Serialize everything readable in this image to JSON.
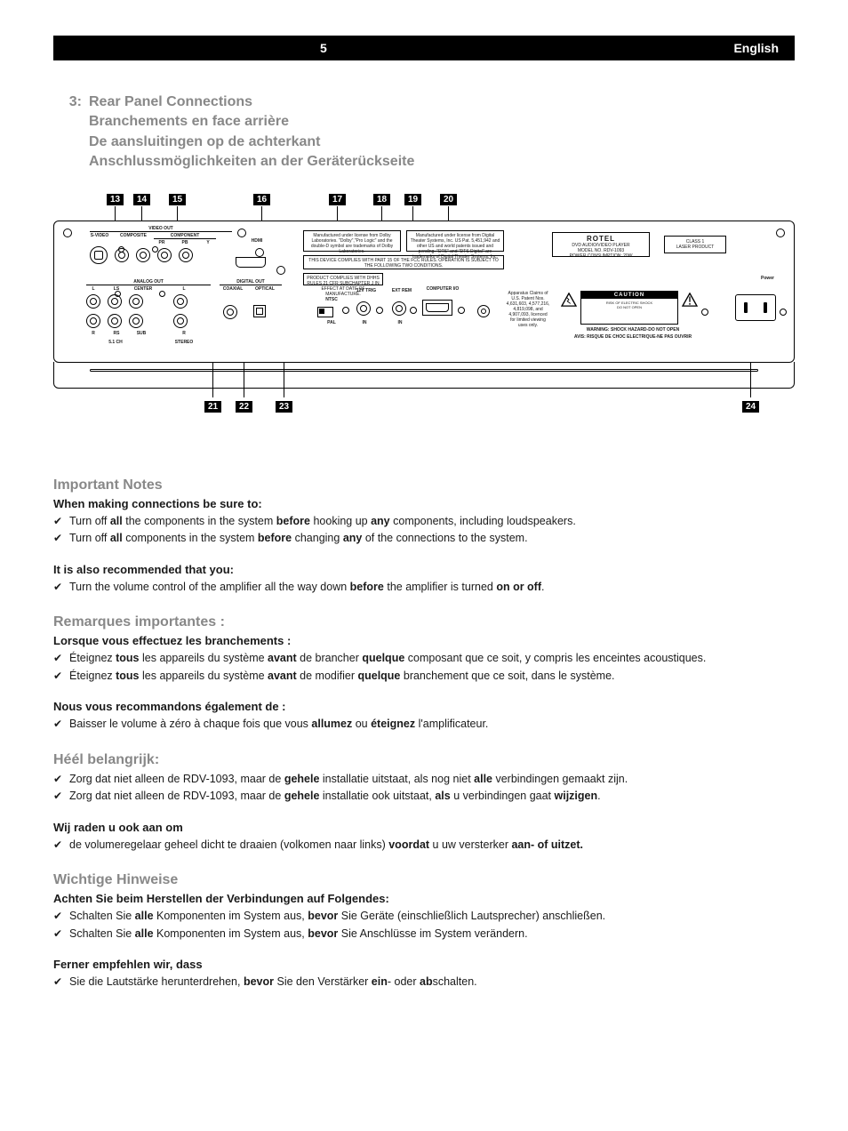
{
  "header": {
    "page_number": "5",
    "language": "English"
  },
  "title": {
    "number": "3:",
    "line1": "Rear Panel Connections",
    "line2": "Branchements en face arrière",
    "line3": "De aansluitingen op de achterkant",
    "line4": "Anschlussmöglichkeiten an der Geräterückseite"
  },
  "diagram": {
    "callouts_top": [
      "13",
      "14",
      "15",
      "16",
      "17",
      "18",
      "19",
      "20"
    ],
    "callouts_top_x": [
      60,
      90,
      130,
      225,
      310,
      360,
      395,
      435
    ],
    "callouts_bottom": [
      "21",
      "22",
      "23",
      "24"
    ],
    "callouts_bottom_x": [
      170,
      205,
      250,
      775
    ],
    "panel_labels": {
      "video_out": "VIDEO OUT",
      "svideo": "S-VIDEO",
      "composite": "COMPOSITE",
      "component": "COMPONENT",
      "pr": "PR",
      "pb": "PB",
      "y": "Y",
      "hdmi": "HDMI",
      "analog_out": "ANALOG OUT",
      "l": "L",
      "ls": "LS",
      "center": "CENTER",
      "r": "R",
      "rs": "RS",
      "sub": "SUB",
      "stereo_l": "L",
      "stereo_r": "R",
      "ch51": "5.1 CH",
      "stereo": "STEREO",
      "digital_out": "DIGITAL OUT",
      "coaxial": "COAXIAL",
      "optical": "OPTICAL",
      "ntsc": "NTSC",
      "pal": "PAL",
      "trig12v": "12V TRIG",
      "ext_rem": "EXT REM",
      "in1": "IN",
      "in2": "IN",
      "computer": "COMPUTER I/O",
      "rotel": "ROTEL",
      "model_line1": "DVD AUDIO/VIDEO PLAYER",
      "model_line2": "MODEL NO. RDV-1093",
      "model_line3": "POWER CONSUMPTION: 20W",
      "class1a": "CLASS 1",
      "class1b": "LASER PRODUCT",
      "caution": "CAUTION",
      "caution_l1": "RISK OF ELECTRIC SHOCK",
      "caution_l2": "DO NOT OPEN",
      "warn_l1": "WARNING: SHOCK HAZARD-DO NOT OPEN",
      "warn_l2": "AVIS: RISQUE DE CHOC ELECTRIQUE-NE PAS OUVRIR"
    }
  },
  "sections": {
    "en": {
      "heading": "Important Notes",
      "sub1": "When making connections be sure to:",
      "items1": [
        {
          "pre": "Turn off ",
          "b1": "all",
          "mid": " the components in the system ",
          "b2": "before",
          "mid2": " hooking up ",
          "b3": "any",
          "post": " components, including loudspeakers."
        },
        {
          "pre": "Turn off ",
          "b1": "all",
          "mid": " components in the system ",
          "b2": "before",
          "mid2": " changing ",
          "b3": "any",
          "post": " of the connections to the system."
        }
      ],
      "sub2": "It is also recommended that you:",
      "items2": [
        {
          "pre": "Turn the volume control of the amplifier all the way down ",
          "b1": "before",
          "mid": " the amplifier is turned ",
          "b2": "on or off",
          "post": "."
        }
      ]
    },
    "fr": {
      "heading": "Remarques importantes :",
      "sub1": "Lorsque vous effectuez les branchements :",
      "items1": [
        {
          "pre": "Éteignez ",
          "b1": "tous",
          "mid": " les appareils du système ",
          "b2": "avant",
          "mid2": " de brancher ",
          "b3": "quelque",
          "post": " composant que ce soit, y compris les enceintes acoustiques."
        },
        {
          "pre": "Éteignez ",
          "b1": "tous",
          "mid": " les appareils du système ",
          "b2": "avant",
          "mid2": " de modifier ",
          "b3": "quelque",
          "post": " branchement que ce soit, dans le système."
        }
      ],
      "sub2": "Nous vous recommandons également de :",
      "items2": [
        {
          "pre": "Baisser le volume à zéro à chaque fois que vous ",
          "b1": "allumez",
          "mid": " ou ",
          "b2": "éteignez",
          "post": " l'amplificateur."
        }
      ]
    },
    "nl": {
      "heading": "Héél belangrijk:",
      "items1": [
        {
          "pre": "Zorg dat niet alleen de RDV-1093, maar de ",
          "b1": "gehele",
          "mid": " installatie uitstaat, als nog niet ",
          "b2": "alle",
          "post": " verbindingen gemaakt zijn."
        },
        {
          "pre": "Zorg dat niet alleen de RDV-1093, maar de ",
          "b1": "gehele",
          "mid": " installatie ook uitstaat, ",
          "b2": "als",
          "mid2": " u verbindingen gaat ",
          "b3": "wijzigen",
          "post": "."
        }
      ],
      "sub2": "Wij raden u ook aan om",
      "items2": [
        {
          "pre": "de volumeregelaar geheel dicht te draaien (volkomen naar links) ",
          "b1": "voordat",
          "mid": " u uw versterker ",
          "b2": "aan- of uitzet.",
          "post": ""
        }
      ]
    },
    "de": {
      "heading": "Wichtige Hinweise",
      "sub1": "Achten Sie beim Herstellen der Verbindungen auf Folgendes:",
      "items1": [
        {
          "pre": "Schalten Sie ",
          "b1": "alle",
          "mid": " Komponenten im System aus, ",
          "b2": "bevor",
          "post": " Sie Geräte (einschließlich Lautsprecher) anschließen."
        },
        {
          "pre": "Schalten Sie ",
          "b1": "alle",
          "mid": " Komponenten im System aus, ",
          "b2": "bevor",
          "post": " Sie Anschlüsse im System verändern."
        }
      ],
      "sub2": "Ferner empfehlen wir, dass",
      "items2": [
        {
          "pre": "Sie die Lautstärke herunterdrehen, ",
          "b1": "bevor",
          "mid": " Sie den Verstärker ",
          "b2": "ein",
          "mid2": "- oder ",
          "b3": "ab",
          "post": "schalten."
        }
      ]
    }
  }
}
